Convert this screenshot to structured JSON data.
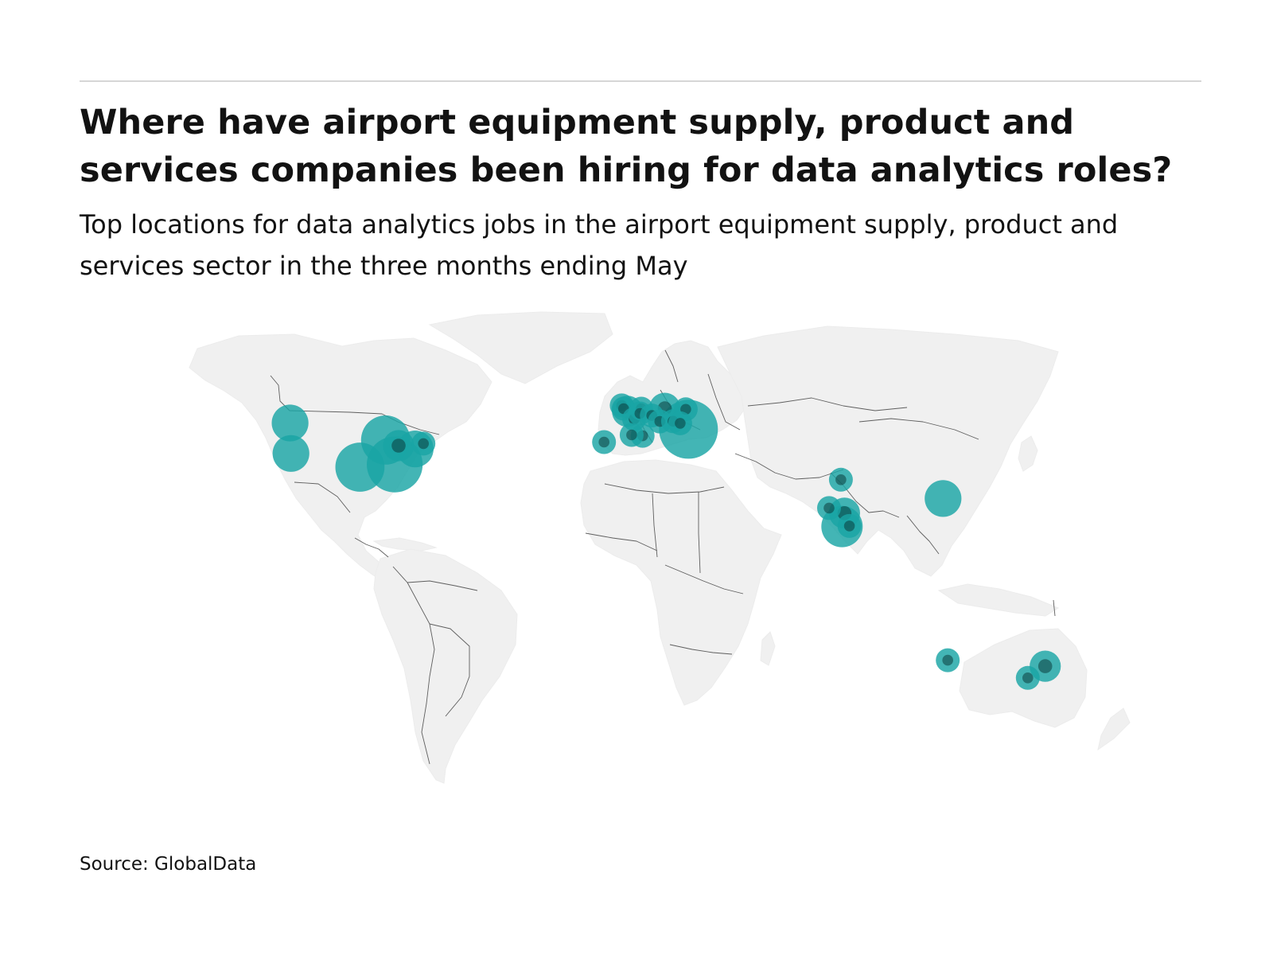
{
  "header": {
    "title": "Where have airport equipment supply, product and services companies been hiring for data analytics roles?",
    "subtitle": "Top locations for data analytics jobs in the airport equipment supply, product and services sector in the three months ending May"
  },
  "footer": {
    "source": "Source: GlobalData"
  },
  "colors": {
    "bubble": "#1aa5a5",
    "bubble_overlap": "#0b3d3d",
    "land": "#f0f0f0",
    "border": "#5e5e5e",
    "rule": "#d6d6d6"
  },
  "map": {
    "projection": "equirectangular world map",
    "locations": [
      {
        "lon": -122.3,
        "lat": 47.6,
        "size": 3
      },
      {
        "lon": -122.0,
        "lat": 37.4,
        "size": 3
      },
      {
        "lon": -97.0,
        "lat": 32.8,
        "size": 6
      },
      {
        "lon": -87.7,
        "lat": 41.9,
        "size": 6
      },
      {
        "lon": -84.4,
        "lat": 33.7,
        "size": 8
      },
      {
        "lon": -83.0,
        "lat": 40.0,
        "size": 2
      },
      {
        "lon": -77.0,
        "lat": 38.9,
        "size": 3
      },
      {
        "lon": -74.0,
        "lat": 40.7,
        "size": 1
      },
      {
        "lon": -2.2,
        "lat": 53.5,
        "size": 1
      },
      {
        "lon": -1.5,
        "lat": 52.4,
        "size": 1
      },
      {
        "lon": -0.1,
        "lat": 51.5,
        "size": 2
      },
      {
        "lon": 2.3,
        "lat": 48.9,
        "size": 1
      },
      {
        "lon": 4.9,
        "lat": 52.4,
        "size": 1
      },
      {
        "lon": 4.4,
        "lat": 50.8,
        "size": 1
      },
      {
        "lon": 5.4,
        "lat": 43.3,
        "size": 1
      },
      {
        "lon": 1.4,
        "lat": 43.6,
        "size": 1
      },
      {
        "lon": -8.6,
        "lat": 41.2,
        "size": 1
      },
      {
        "lon": 8.7,
        "lat": 50.1,
        "size": 1
      },
      {
        "lon": 11.6,
        "lat": 48.1,
        "size": 1
      },
      {
        "lon": 13.4,
        "lat": 52.5,
        "size": 2
      },
      {
        "lon": 16.4,
        "lat": 48.2,
        "size": 1
      },
      {
        "lon": 21.0,
        "lat": 52.2,
        "size": 1
      },
      {
        "lon": 19.0,
        "lat": 47.5,
        "size": 1
      },
      {
        "lon": 22.0,
        "lat": 45.5,
        "size": 9
      },
      {
        "lon": 77.2,
        "lat": 28.6,
        "size": 1
      },
      {
        "lon": 72.9,
        "lat": 19.1,
        "size": 1
      },
      {
        "lon": 77.6,
        "lat": 12.9,
        "size": 4
      },
      {
        "lon": 78.5,
        "lat": 17.4,
        "size": 2
      },
      {
        "lon": 80.3,
        "lat": 13.1,
        "size": 1
      },
      {
        "lon": 114.2,
        "lat": 22.3,
        "size": 3
      },
      {
        "lon": 115.9,
        "lat": -31.9,
        "size": 1
      },
      {
        "lon": 144.9,
        "lat": -37.8,
        "size": 1
      },
      {
        "lon": 151.2,
        "lat": -33.9,
        "size": 2
      }
    ]
  }
}
